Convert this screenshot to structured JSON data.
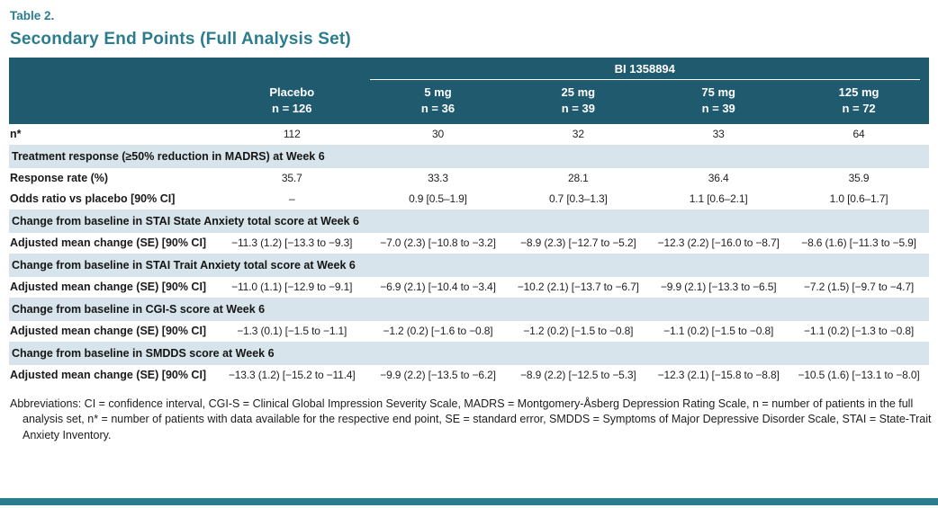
{
  "colors": {
    "accent": "#2b7d8d",
    "header_bg": "#1f5a6e",
    "section_bg": "#d8e4eb"
  },
  "table_label": "Table 2.",
  "title": "Secondary End Points (Full Analysis Set)",
  "header": {
    "group_label": "BI 1358894",
    "columns": [
      {
        "name": "Placebo",
        "n": "n = 126"
      },
      {
        "name": "5 mg",
        "n": "n = 36"
      },
      {
        "name": "25 mg",
        "n": "n = 39"
      },
      {
        "name": "75 mg",
        "n": "n = 39"
      },
      {
        "name": "125 mg",
        "n": "n = 72"
      }
    ]
  },
  "rows": [
    {
      "type": "data",
      "label": "n*",
      "values": [
        "112",
        "30",
        "32",
        "33",
        "64"
      ]
    },
    {
      "type": "section",
      "label": "Treatment response (≥50% reduction in MADRS) at Week 6"
    },
    {
      "type": "data",
      "label": "Response rate (%)",
      "values": [
        "35.7",
        "33.3",
        "28.1",
        "36.4",
        "35.9"
      ]
    },
    {
      "type": "data",
      "label": "Odds ratio vs placebo [90% CI]",
      "values": [
        "–",
        "0.9 [0.5–1.9]",
        "0.7 [0.3–1.3]",
        "1.1 [0.6–2.1]",
        "1.0 [0.6–1.7]"
      ]
    },
    {
      "type": "section",
      "label": "Change from baseline in STAI State Anxiety total score at Week 6"
    },
    {
      "type": "data",
      "label": "Adjusted mean change (SE) [90% CI]",
      "values": [
        "−11.3 (1.2) [−13.3 to −9.3]",
        "−7.0 (2.3) [−10.8 to −3.2]",
        "−8.9 (2.3) [−12.7 to −5.2]",
        "−12.3 (2.2) [−16.0 to −8.7]",
        "−8.6 (1.6) [−11.3 to −5.9]"
      ]
    },
    {
      "type": "section",
      "label": "Change from baseline in STAI Trait Anxiety total score at Week 6"
    },
    {
      "type": "data",
      "label": "Adjusted mean change (SE) [90% CI]",
      "values": [
        "−11.0 (1.1) [−12.9 to −9.1]",
        "−6.9 (2.1) [−10.4 to −3.4]",
        "−10.2 (2.1) [−13.7 to −6.7]",
        "−9.9 (2.1) [−13.3 to −6.5]",
        "−7.2 (1.5) [−9.7 to −4.7]"
      ]
    },
    {
      "type": "section",
      "label": "Change from baseline in CGI-S score at Week 6"
    },
    {
      "type": "data",
      "label": "Adjusted mean change (SE) [90% CI]",
      "values": [
        "−1.3 (0.1) [−1.5 to −1.1]",
        "−1.2 (0.2) [−1.6 to −0.8]",
        "−1.2 (0.2) [−1.5 to −0.8]",
        "−1.1 (0.2) [−1.5 to −0.8]",
        "−1.1 (0.2) [−1.3 to −0.8]"
      ]
    },
    {
      "type": "section",
      "label": "Change from baseline in SMDDS score at Week 6"
    },
    {
      "type": "data",
      "label": "Adjusted mean change (SE) [90% CI]",
      "values": [
        "−13.3 (1.2) [−15.2 to −11.4]",
        "−9.9 (2.2) [−13.5 to −6.2]",
        "−8.9 (2.2) [−12.5 to −5.3]",
        "−12.3 (2.1) [−15.8 to −8.8]",
        "−10.5 (1.6) [−13.1 to −8.0]"
      ]
    }
  ],
  "footnote": "Abbreviations: CI = confidence interval, CGI-S = Clinical Global Impression Severity Scale, MADRS = Montgomery-Åsberg Depression Rating Scale, n = number of patients in the full analysis set, n* = number of patients with data available for the respective end point, SE = standard error, SMDDS = Symptoms of Major Depressive Disorder Scale, STAI = State-Trait Anxiety Inventory."
}
